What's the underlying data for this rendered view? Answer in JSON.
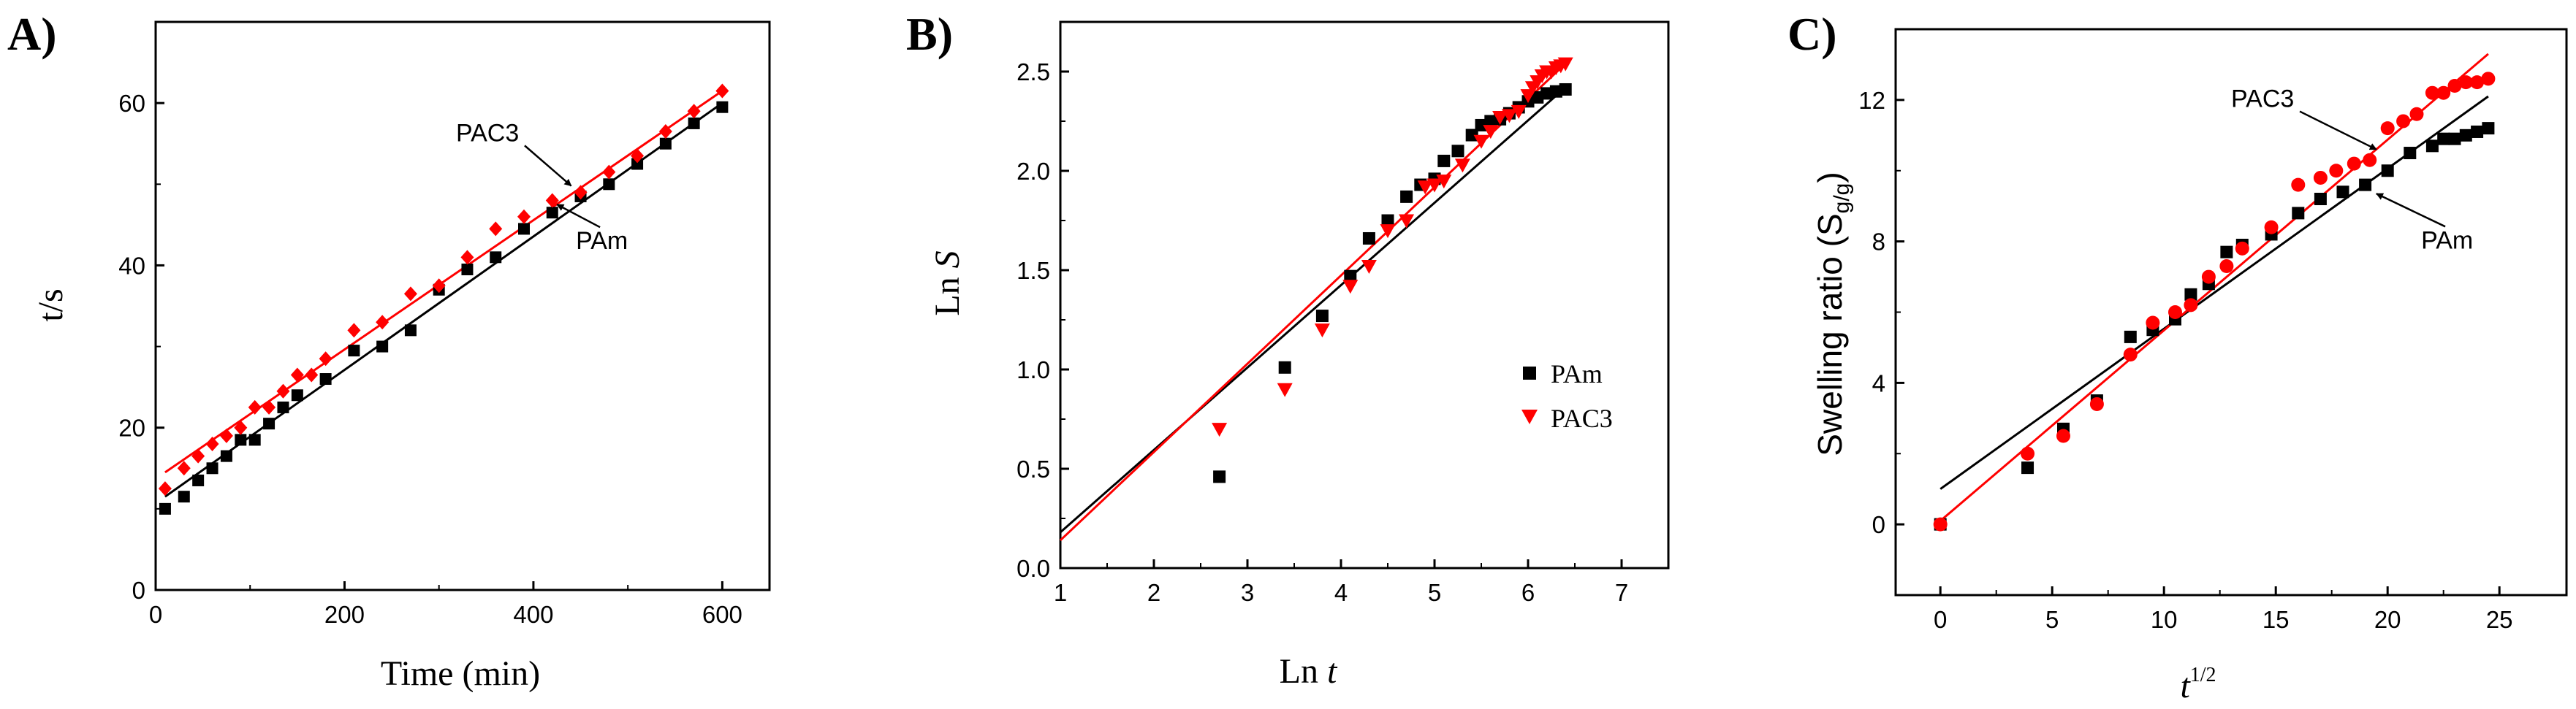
{
  "colors": {
    "PAm": "#000000",
    "PAC3": "#ff0000"
  },
  "chart_data": [
    {
      "id": "A",
      "type": "scatter",
      "panel_label": "A)",
      "xlabel": "Time (min)",
      "ylabel": "t/s",
      "xlim": [
        0,
        650
      ],
      "ylim": [
        0,
        70
      ],
      "xticks": [
        0,
        200,
        400,
        600
      ],
      "yticks": [
        0,
        20,
        40,
        60
      ],
      "xtick_labels": [
        "0",
        "200",
        "400",
        "600"
      ],
      "ytick_labels": [
        "0",
        "20",
        "40",
        "60"
      ],
      "series": [
        {
          "name": "PAm",
          "marker": "square",
          "color": "#000000",
          "x": [
            10,
            30,
            45,
            60,
            75,
            90,
            105,
            120,
            135,
            150,
            180,
            210,
            240,
            270,
            300,
            330,
            360,
            390,
            420,
            450,
            480,
            510,
            540,
            570,
            600
          ],
          "y": [
            10,
            11.5,
            13.5,
            15,
            16.5,
            18.5,
            18.5,
            20.5,
            22.5,
            24,
            26,
            29.5,
            30,
            32,
            37,
            39.5,
            41,
            44.5,
            46.5,
            48.5,
            50,
            52.5,
            55,
            57.5,
            59.5
          ],
          "fit": [
            [
              10,
              11.5
            ],
            [
              600,
              60
            ]
          ]
        },
        {
          "name": "PAC3",
          "marker": "diamond",
          "color": "#ff0000",
          "x": [
            10,
            30,
            45,
            60,
            75,
            90,
            105,
            120,
            135,
            150,
            165,
            180,
            210,
            240,
            270,
            300,
            330,
            360,
            390,
            420,
            450,
            480,
            510,
            540,
            570,
            600
          ],
          "y": [
            12.5,
            15,
            16.5,
            18,
            19,
            20,
            22.5,
            22.5,
            24.5,
            26.5,
            26.5,
            28.5,
            32,
            33,
            36.5,
            37.5,
            41,
            44.5,
            46,
            48,
            49,
            51.5,
            53.5,
            56.5,
            59,
            61.5
          ],
          "fit": [
            [
              10,
              14.5
            ],
            [
              600,
              61.5
            ]
          ]
        }
      ],
      "annotations": [
        {
          "text": "PAC3",
          "label_at": [
            318,
            55.3
          ],
          "arrow_to": [
            440,
            49.8
          ]
        },
        {
          "text": "PAm",
          "label_at": [
            445,
            42
          ],
          "arrow_to": [
            425,
            47.5
          ]
        }
      ]
    },
    {
      "id": "B",
      "type": "scatter",
      "panel_label": "B)",
      "xlabel": "Ln",
      "xlabel_var": "t",
      "ylabel": "Ln",
      "ylabel_var": "S",
      "xlim": [
        1,
        7.5
      ],
      "ylim": [
        0.0,
        2.75
      ],
      "xticks": [
        1,
        2,
        3,
        4,
        5,
        6,
        7
      ],
      "yticks": [
        0.0,
        0.5,
        1.0,
        1.5,
        2.0,
        2.5
      ],
      "xtick_labels": [
        "1",
        "2",
        "3",
        "4",
        "5",
        "6",
        "7"
      ],
      "ytick_labels": [
        "0.0",
        "0.5",
        "1.0",
        "1.5",
        "2.0",
        "2.5"
      ],
      "legend": {
        "position": "center-right",
        "entries": [
          "PAm",
          "PAC3"
        ]
      },
      "series": [
        {
          "name": "PAm",
          "marker": "square",
          "color": "#000000",
          "x": [
            2.7,
            3.4,
            3.8,
            4.1,
            4.3,
            4.5,
            4.7,
            4.85,
            5.0,
            5.1,
            5.25,
            5.4,
            5.5,
            5.6,
            5.7,
            5.8,
            5.9,
            6.0,
            6.1,
            6.2,
            6.3,
            6.4
          ],
          "y": [
            0.46,
            1.01,
            1.27,
            1.47,
            1.66,
            1.75,
            1.87,
            1.93,
            1.96,
            2.05,
            2.1,
            2.18,
            2.23,
            2.25,
            2.26,
            2.29,
            2.32,
            2.35,
            2.37,
            2.39,
            2.4,
            2.41
          ],
          "fit": [
            [
              1,
              0.18
            ],
            [
              6.4,
              2.42
            ]
          ]
        },
        {
          "name": "PAC3",
          "marker": "triangle-down",
          "color": "#ff0000",
          "x": [
            2.7,
            3.4,
            3.8,
            4.1,
            4.3,
            4.5,
            4.7,
            4.9,
            5.0,
            5.1,
            5.3,
            5.5,
            5.6,
            5.7,
            5.8,
            5.9,
            6.0,
            6.05,
            6.1,
            6.15,
            6.2,
            6.25,
            6.3,
            6.35,
            6.4
          ],
          "y": [
            0.7,
            0.9,
            1.2,
            1.42,
            1.52,
            1.7,
            1.75,
            1.92,
            1.93,
            1.95,
            2.03,
            2.15,
            2.2,
            2.27,
            2.28,
            2.3,
            2.38,
            2.42,
            2.45,
            2.48,
            2.5,
            2.5,
            2.52,
            2.53,
            2.54
          ],
          "fit": [
            [
              1,
              0.14
            ],
            [
              6.4,
              2.54
            ]
          ]
        }
      ]
    },
    {
      "id": "C",
      "type": "scatter",
      "panel_label": "C)",
      "xlabel": "t",
      "xlabel_sup": "1/2",
      "ylabel": "Swelling ratio (S",
      "ylabel_sub": "g/g",
      "ylabel_end": ")",
      "xlim": [
        -2,
        28
      ],
      "ylim": [
        -2,
        14
      ],
      "xticks": [
        0,
        5,
        10,
        15,
        20,
        25
      ],
      "yticks": [
        0,
        4,
        8,
        12
      ],
      "xtick_labels": [
        "0",
        "5",
        "10",
        "15",
        "20",
        "25"
      ],
      "ytick_labels": [
        "0",
        "4",
        "8",
        "12"
      ],
      "series": [
        {
          "name": "PAm",
          "marker": "square",
          "color": "#000000",
          "x": [
            0,
            3.9,
            5.5,
            7.0,
            8.5,
            9.5,
            10.5,
            11.2,
            12.0,
            12.8,
            13.5,
            14.8,
            16.0,
            17.0,
            18.0,
            19.0,
            20.0,
            21.0,
            22.0,
            22.5,
            23.0,
            23.5,
            24.0,
            24.5
          ],
          "y": [
            0,
            1.6,
            2.7,
            3.5,
            5.3,
            5.5,
            5.8,
            6.5,
            6.8,
            7.7,
            7.9,
            8.2,
            8.8,
            9.2,
            9.4,
            9.6,
            10.0,
            10.5,
            10.7,
            10.9,
            10.9,
            11.0,
            11.1,
            11.2
          ],
          "fit": [
            [
              0,
              1.0
            ],
            [
              24.5,
              12.1
            ]
          ]
        },
        {
          "name": "PAC3",
          "marker": "circle",
          "color": "#ff0000",
          "x": [
            0,
            3.9,
            5.5,
            7.0,
            8.5,
            9.5,
            10.5,
            11.2,
            12.0,
            12.8,
            13.5,
            14.8,
            16.0,
            17.0,
            17.7,
            18.5,
            19.2,
            20.0,
            20.7,
            21.3,
            22.0,
            22.5,
            23.0,
            23.5,
            24.0,
            24.5
          ],
          "y": [
            0,
            2.0,
            2.5,
            3.4,
            4.8,
            5.7,
            6.0,
            6.2,
            7.0,
            7.3,
            7.8,
            8.4,
            9.6,
            9.8,
            10.0,
            10.2,
            10.3,
            11.2,
            11.4,
            11.6,
            12.2,
            12.2,
            12.4,
            12.5,
            12.5,
            12.6
          ],
          "fit": [
            [
              0,
              0.1
            ],
            [
              24.5,
              13.3
            ]
          ]
        }
      ],
      "annotations": [
        {
          "text": "PAC3",
          "label_at": [
            13.0,
            11.8
          ],
          "arrow_to": [
            19.5,
            10.6
          ]
        },
        {
          "text": "PAm",
          "label_at": [
            21.5,
            7.8
          ],
          "arrow_to": [
            19.5,
            9.35
          ]
        }
      ]
    }
  ]
}
